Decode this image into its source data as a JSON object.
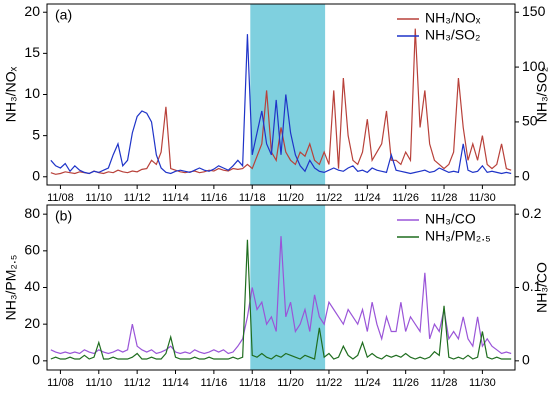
{
  "chart_data": [
    {
      "type": "line",
      "panel_label": "(a)",
      "ylabel": "NH₃/NOₓ",
      "y2label": "NH₃/SO₂",
      "legend": "upper right",
      "highlight": [
        17.9,
        21.8
      ],
      "highlight_color": "#7fd0df",
      "xlim": [
        7.3,
        31.7
      ],
      "xticks": [
        {
          "value": 8,
          "label": "11/08"
        },
        {
          "value": 10,
          "label": "11/10"
        },
        {
          "value": 12,
          "label": "11/12"
        },
        {
          "value": 14,
          "label": "11/14"
        },
        {
          "value": 16,
          "label": "11/16"
        },
        {
          "value": 18,
          "label": "11/18"
        },
        {
          "value": 20,
          "label": "11/20"
        },
        {
          "value": 22,
          "label": "11/22"
        },
        {
          "value": 24,
          "label": "11/24"
        },
        {
          "value": 26,
          "label": "11/26"
        },
        {
          "value": 28,
          "label": "11/28"
        },
        {
          "value": 30,
          "label": "11/30"
        }
      ],
      "ylim": [
        -1,
        21
      ],
      "yticks": [
        0,
        5,
        10,
        15,
        20
      ],
      "y2lim": [
        -7.5,
        157.5
      ],
      "y2ticks": [
        0,
        50,
        100,
        150
      ],
      "x": [
        7.5,
        7.75,
        8,
        8.25,
        8.5,
        8.75,
        9,
        9.25,
        9.5,
        9.75,
        10,
        10.25,
        10.5,
        10.75,
        11,
        11.25,
        11.5,
        11.75,
        12,
        12.25,
        12.5,
        12.75,
        13,
        13.25,
        13.5,
        13.75,
        14,
        14.25,
        14.5,
        14.75,
        15,
        15.25,
        15.5,
        15.75,
        16,
        16.25,
        16.5,
        16.75,
        17,
        17.25,
        17.5,
        17.75,
        18,
        18.25,
        18.5,
        18.75,
        19,
        19.25,
        19.5,
        19.75,
        20,
        20.25,
        20.5,
        20.75,
        21,
        21.25,
        21.5,
        21.75,
        22,
        22.25,
        22.5,
        22.75,
        23,
        23.25,
        23.5,
        23.75,
        24,
        24.25,
        24.5,
        24.75,
        25,
        25.25,
        25.5,
        25.75,
        26,
        26.25,
        26.5,
        26.75,
        27,
        27.25,
        27.5,
        27.75,
        28,
        28.25,
        28.5,
        28.75,
        29,
        29.25,
        29.5,
        29.75,
        30,
        30.25,
        30.5,
        30.75,
        31,
        31.25,
        31.5
      ],
      "series": [
        {
          "name": "NH₃/NOₓ",
          "color": "#b8413a",
          "values": [
            0.5,
            0.3,
            0.4,
            0.6,
            0.5,
            0.4,
            0.6,
            0.5,
            0.4,
            0.7,
            0.5,
            0.4,
            0.6,
            0.5,
            0.8,
            0.6,
            0.5,
            0.7,
            0.6,
            0.9,
            1,
            2,
            1.5,
            3,
            8.5,
            1,
            0.8,
            0.6,
            0.5,
            0.6,
            0.7,
            0.5,
            0.6,
            0.8,
            0.7,
            1,
            0.8,
            0.7,
            1,
            0.9,
            1,
            1.5,
            1,
            2.5,
            4,
            10.5,
            3,
            2,
            6,
            3,
            2,
            1.5,
            3,
            2.5,
            4,
            2,
            1.5,
            3,
            1.5,
            10.5,
            1,
            12,
            5,
            2,
            1.5,
            3,
            7,
            2,
            3,
            4,
            8,
            2,
            2,
            1.5,
            3,
            2,
            18,
            6,
            10.5,
            4,
            2,
            1.5,
            1,
            1.5,
            3,
            12,
            6,
            2,
            4,
            2,
            5,
            1.5,
            1,
            1.5,
            4,
            1,
            0.8
          ]
        },
        {
          "name": "NH₃/SO₂",
          "color": "#1f34c8",
          "axis": "y2",
          "values": [
            15,
            10,
            8,
            12,
            5,
            10,
            6,
            4,
            3,
            5,
            4,
            6,
            8,
            20,
            30,
            10,
            15,
            40,
            55,
            60,
            58,
            50,
            20,
            8,
            4,
            3,
            5,
            6,
            5,
            4,
            6,
            8,
            6,
            5,
            7,
            10,
            8,
            6,
            10,
            15,
            10,
            130,
            20,
            40,
            60,
            30,
            20,
            70,
            20,
            75,
            40,
            20,
            10,
            5,
            15,
            8,
            5,
            4,
            6,
            8,
            6,
            5,
            8,
            10,
            5,
            6,
            4,
            8,
            6,
            5,
            4,
            20,
            6,
            5,
            4,
            3,
            4,
            5,
            6,
            4,
            5,
            8,
            6,
            4,
            5,
            4,
            30,
            6,
            4,
            5,
            10,
            4,
            5,
            4,
            3,
            4,
            3
          ]
        }
      ]
    },
    {
      "type": "line",
      "panel_label": "(b)",
      "ylabel": "NH₃/PM₂.₅",
      "y2label": "NH₃/CO",
      "legend": "upper right",
      "highlight": [
        17.9,
        21.8
      ],
      "highlight_color": "#7fd0df",
      "xlim": [
        7.3,
        31.7
      ],
      "xticks": [
        {
          "value": 8,
          "label": "11/08"
        },
        {
          "value": 10,
          "label": "11/10"
        },
        {
          "value": 12,
          "label": "11/12"
        },
        {
          "value": 14,
          "label": "11/14"
        },
        {
          "value": 16,
          "label": "11/16"
        },
        {
          "value": 18,
          "label": "11/18"
        },
        {
          "value": 20,
          "label": "11/20"
        },
        {
          "value": 22,
          "label": "11/22"
        },
        {
          "value": 24,
          "label": "11/24"
        },
        {
          "value": 26,
          "label": "11/26"
        },
        {
          "value": 28,
          "label": "11/28"
        },
        {
          "value": 30,
          "label": "11/30"
        }
      ],
      "ylim": [
        -5,
        85
      ],
      "yticks": [
        0,
        20,
        40,
        60,
        80
      ],
      "y2lim": [
        -0.0125,
        0.2125
      ],
      "y2ticks": [
        0,
        0.1,
        0.2
      ],
      "x": [
        7.5,
        7.75,
        8,
        8.25,
        8.5,
        8.75,
        9,
        9.25,
        9.5,
        9.75,
        10,
        10.25,
        10.5,
        10.75,
        11,
        11.25,
        11.5,
        11.75,
        12,
        12.25,
        12.5,
        12.75,
        13,
        13.25,
        13.5,
        13.75,
        14,
        14.25,
        14.5,
        14.75,
        15,
        15.25,
        15.5,
        15.75,
        16,
        16.25,
        16.5,
        16.75,
        17,
        17.25,
        17.5,
        17.75,
        18,
        18.25,
        18.5,
        18.75,
        19,
        19.25,
        19.5,
        19.75,
        20,
        20.25,
        20.5,
        20.75,
        21,
        21.25,
        21.5,
        21.75,
        22,
        22.25,
        22.5,
        22.75,
        23,
        23.25,
        23.5,
        23.75,
        24,
        24.25,
        24.5,
        24.75,
        25,
        25.25,
        25.5,
        25.75,
        26,
        26.25,
        26.5,
        26.75,
        27,
        27.25,
        27.5,
        27.75,
        28,
        28.25,
        28.5,
        28.75,
        29,
        29.25,
        29.5,
        29.75,
        30,
        30.25,
        30.5,
        30.75,
        31,
        31.25,
        31.5
      ],
      "series": [
        {
          "name": "NH₃/CO",
          "color": "#9a55d8",
          "axis": "y2",
          "values": [
            0.015,
            0.012,
            0.01,
            0.012,
            0.01,
            0.012,
            0.01,
            0.015,
            0.012,
            0.01,
            0.015,
            0.012,
            0.01,
            0.012,
            0.015,
            0.012,
            0.015,
            0.05,
            0.02,
            0.015,
            0.012,
            0.015,
            0.01,
            0.012,
            0.015,
            0.02,
            0.012,
            0.01,
            0.012,
            0.01,
            0.015,
            0.012,
            0.01,
            0.012,
            0.015,
            0.012,
            0.015,
            0.01,
            0.012,
            0.02,
            0.03,
            0.06,
            0.1,
            0.07,
            0.08,
            0.05,
            0.06,
            0.04,
            0.17,
            0.06,
            0.08,
            0.04,
            0.05,
            0.07,
            0.04,
            0.09,
            0.06,
            0.05,
            0.08,
            0.07,
            0.06,
            0.05,
            0.07,
            0.06,
            0.05,
            0.07,
            0.04,
            0.08,
            0.05,
            0.03,
            0.06,
            0.04,
            0.04,
            0.08,
            0.04,
            0.06,
            0.05,
            0.04,
            0.12,
            0.03,
            0.05,
            0.04,
            0.07,
            0.03,
            0.04,
            0.03,
            0.06,
            0.03,
            0.02,
            0.06,
            0.02,
            0.03,
            0.02,
            0.015,
            0.01,
            0.012,
            0.01
          ]
        },
        {
          "name": "NH₃/PM₂.₅",
          "color": "#1f6d1f",
          "values": [
            1,
            2,
            1,
            1,
            2,
            1,
            1,
            3,
            1,
            2,
            10,
            1,
            1,
            2,
            1,
            1,
            1,
            2,
            4,
            1,
            1,
            2,
            1,
            1,
            4,
            13,
            2,
            1,
            1,
            1,
            2,
            1,
            1,
            2,
            1,
            1,
            1,
            1,
            2,
            1,
            2,
            66,
            3,
            2,
            4,
            2,
            1,
            3,
            2,
            4,
            3,
            2,
            1,
            3,
            2,
            1,
            18,
            2,
            4,
            1,
            2,
            8,
            3,
            1,
            3,
            10,
            2,
            4,
            2,
            1,
            3,
            2,
            3,
            2,
            4,
            2,
            1,
            2,
            1,
            2,
            5,
            3,
            30,
            2,
            1,
            2,
            1,
            3,
            1,
            2,
            16,
            2,
            1,
            2,
            1,
            1,
            1
          ]
        }
      ]
    }
  ]
}
